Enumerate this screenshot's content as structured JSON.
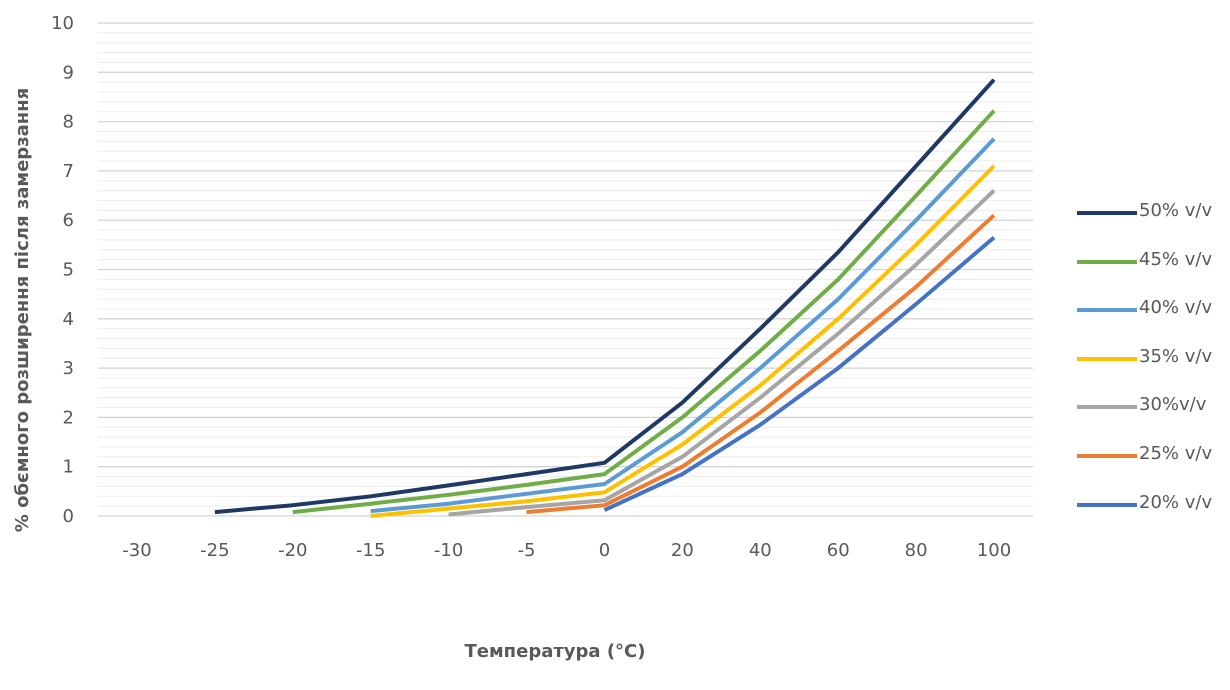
{
  "chart_data": {
    "type": "line",
    "title": "",
    "xlabel": "Температура (°C)",
    "ylabel": "% обємного розширення після замерзання",
    "ylim": [
      0,
      10
    ],
    "y_ticks": [
      "0",
      "1",
      "2",
      "3",
      "4",
      "5",
      "6",
      "7",
      "8",
      "9",
      "10"
    ],
    "categories": [
      "-30",
      "-25",
      "-20",
      "-15",
      "-10",
      "-5",
      "0",
      "20",
      "40",
      "60",
      "80",
      "100"
    ],
    "grid": true,
    "legend_position": "right",
    "series": [
      {
        "name": "50% v/v",
        "color": "#1f3864",
        "values": [
          null,
          0.08,
          0.22,
          0.4,
          0.62,
          0.85,
          1.08,
          2.3,
          3.8,
          5.35,
          7.1,
          8.85
        ]
      },
      {
        "name": "45% v/v",
        "color": "#70ad47",
        "values": [
          null,
          null,
          0.08,
          0.25,
          0.43,
          0.63,
          0.85,
          2.0,
          3.35,
          4.8,
          6.5,
          8.22
        ]
      },
      {
        "name": "40% v/v",
        "color": "#5b9bd5",
        "values": [
          null,
          null,
          null,
          0.1,
          0.25,
          0.45,
          0.65,
          1.7,
          3.0,
          4.4,
          6.0,
          7.65
        ]
      },
      {
        "name": "35% v/v",
        "color": "#ffc000",
        "values": [
          null,
          null,
          null,
          0.0,
          0.15,
          0.3,
          0.48,
          1.45,
          2.65,
          4.0,
          5.5,
          7.1
        ]
      },
      {
        "name": "30%v/v",
        "color": "#a5a5a5",
        "values": [
          null,
          null,
          null,
          null,
          0.03,
          0.18,
          0.32,
          1.2,
          2.4,
          3.7,
          5.1,
          6.6
        ]
      },
      {
        "name": "25% v/v",
        "color": "#ed7d31",
        "values": [
          null,
          null,
          null,
          null,
          null,
          0.08,
          0.22,
          1.0,
          2.1,
          3.35,
          4.65,
          6.1
        ]
      },
      {
        "name": "20% v/v",
        "color": "#4472c4",
        "values": [
          null,
          null,
          null,
          null,
          null,
          null,
          0.12,
          0.85,
          1.85,
          3.0,
          4.3,
          5.65
        ]
      }
    ]
  }
}
